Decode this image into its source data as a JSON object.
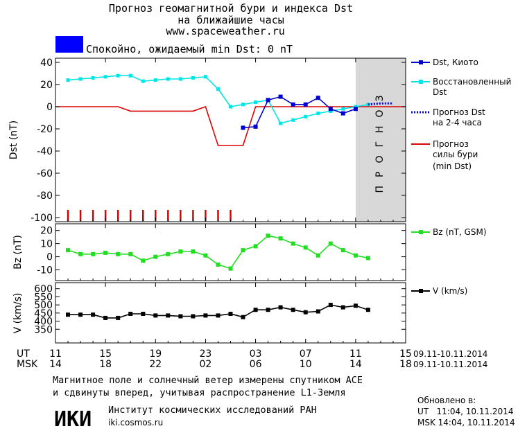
{
  "header": {
    "title_line1": "Прогноз геомагнитной бури и индекса Dst",
    "title_line2": "на ближайшие часы",
    "url": "www.spaceweather.ru",
    "status_color": "#0000ff",
    "status_text": "Спокойно, ожидаемый min Dst: 0 nT"
  },
  "forecast_band_label": "ПРОГНОЗ",
  "legend": {
    "dst_kyoto": "Dst, Киото",
    "dst_restored_1": "Восстановленный",
    "dst_restored_2": "Dst",
    "dst_forecast_1": "Прогноз Dst",
    "dst_forecast_2": "на 2-4 часа",
    "storm_forecast_1": "Прогноз",
    "storm_forecast_2": "силы бури",
    "storm_forecast_3": "(min Dst)",
    "bz": "Bz (nT, GSM)",
    "v": "V (km/s)"
  },
  "time_axis": {
    "ut_label": "UT",
    "msk_label": "MSK",
    "ut_ticks": [
      "11",
      "15",
      "19",
      "23",
      "03",
      "07",
      "11",
      "15"
    ],
    "msk_ticks": [
      "14",
      "18",
      "22",
      "02",
      "06",
      "10",
      "14",
      "18"
    ],
    "ut_range": "09.11-10.11.2014",
    "msk_range": "09.11-10.11.2014"
  },
  "footer": {
    "note_line1": "Магнитное поле и солнечный ветер измерены спутником ACE",
    "note_line2": "и сдвинуты вперед, учитывая распространение L1-Земля",
    "logo": "ИКИ",
    "institute": "Институт космических исследований РАН",
    "institute_url": "iki.cosmos.ru",
    "updated_label": "Обновлено в:",
    "updated_ut": "UT   11:04, 10.11.2014",
    "updated_msk": "MSK 14:04, 10.11.2014"
  },
  "colors": {
    "kyoto": "#0000cc",
    "restored": "#00e5e5",
    "forecast": "#0000ff",
    "storm": "#dd0000",
    "bz": "#22dd22",
    "v": "#000000",
    "band": "#d8d8d8"
  },
  "chart_data": [
    {
      "type": "line",
      "panel": "dst",
      "ylabel": "Dst (nT)",
      "ylim": [
        -100,
        40
      ],
      "yticks": [
        40,
        20,
        0,
        -20,
        -40,
        -60,
        -80,
        -100
      ],
      "xlim": [
        0,
        28
      ],
      "forecast_region": [
        24,
        28
      ],
      "series": [
        {
          "name": "Dst, Киото",
          "x": [
            15,
            16,
            17,
            18,
            19,
            20,
            21,
            22,
            23,
            24
          ],
          "y": [
            -19,
            -18,
            6,
            9,
            2,
            2,
            8,
            -2,
            -6,
            -2
          ]
        },
        {
          "name": "Восстановленный Dst",
          "x": [
            1,
            2,
            3,
            4,
            5,
            6,
            7,
            8,
            9,
            10,
            11,
            12,
            13,
            14,
            15,
            16,
            17,
            18,
            19,
            20,
            21,
            22,
            23,
            24,
            25
          ],
          "y": [
            24,
            25,
            26,
            27,
            28,
            28,
            23,
            24,
            25,
            25,
            26,
            27,
            16,
            0,
            2,
            4,
            6,
            -15,
            -12,
            -9,
            -6,
            -4,
            -2,
            0,
            2
          ]
        },
        {
          "name": "Прогноз Dst на 2-4 часа",
          "x": [
            25,
            26,
            27
          ],
          "y": [
            2,
            3,
            3
          ]
        },
        {
          "name": "Прогноз силы бури (min Dst)",
          "x": [
            0,
            5,
            6,
            11,
            12,
            13,
            14,
            15,
            16,
            28
          ],
          "y": [
            0,
            0,
            -4,
            -4,
            0,
            -35,
            -35,
            -35,
            0,
            0
          ]
        }
      ],
      "storm_marks_x": [
        1,
        2,
        3,
        4,
        5,
        6,
        7,
        8,
        9,
        10,
        11,
        12,
        13,
        14
      ]
    },
    {
      "type": "line",
      "panel": "bz",
      "ylabel": "Bz (nT)",
      "ylim": [
        -15,
        23
      ],
      "yticks": [
        20,
        10,
        0,
        -10
      ],
      "xlim": [
        0,
        28
      ],
      "series": [
        {
          "name": "Bz (nT, GSM)",
          "x": [
            1,
            2,
            3,
            4,
            5,
            6,
            7,
            8,
            9,
            10,
            11,
            12,
            13,
            14,
            15,
            16,
            17,
            18,
            19,
            20,
            21,
            22,
            23,
            24,
            25
          ],
          "y": [
            5,
            2,
            2,
            3,
            2,
            2,
            -3,
            0,
            2,
            4,
            4,
            1,
            -6,
            -9,
            5,
            8,
            16,
            14,
            10,
            7,
            1,
            10,
            5,
            1,
            -1
          ]
        }
      ]
    },
    {
      "type": "line",
      "panel": "v",
      "ylabel": "V (km/s)",
      "ylim": [
        300,
        620
      ],
      "yticks": [
        600,
        550,
        500,
        450,
        400,
        350
      ],
      "xlim": [
        0,
        28
      ],
      "series": [
        {
          "name": "V (km/s)",
          "x": [
            1,
            2,
            3,
            4,
            5,
            6,
            7,
            8,
            9,
            10,
            11,
            12,
            13,
            14,
            15,
            16,
            17,
            18,
            19,
            20,
            21,
            22,
            23,
            24,
            25
          ],
          "y": [
            440,
            440,
            440,
            420,
            420,
            445,
            445,
            435,
            435,
            430,
            430,
            435,
            435,
            445,
            425,
            470,
            470,
            485,
            470,
            455,
            460,
            500,
            485,
            495,
            470
          ]
        }
      ]
    }
  ]
}
